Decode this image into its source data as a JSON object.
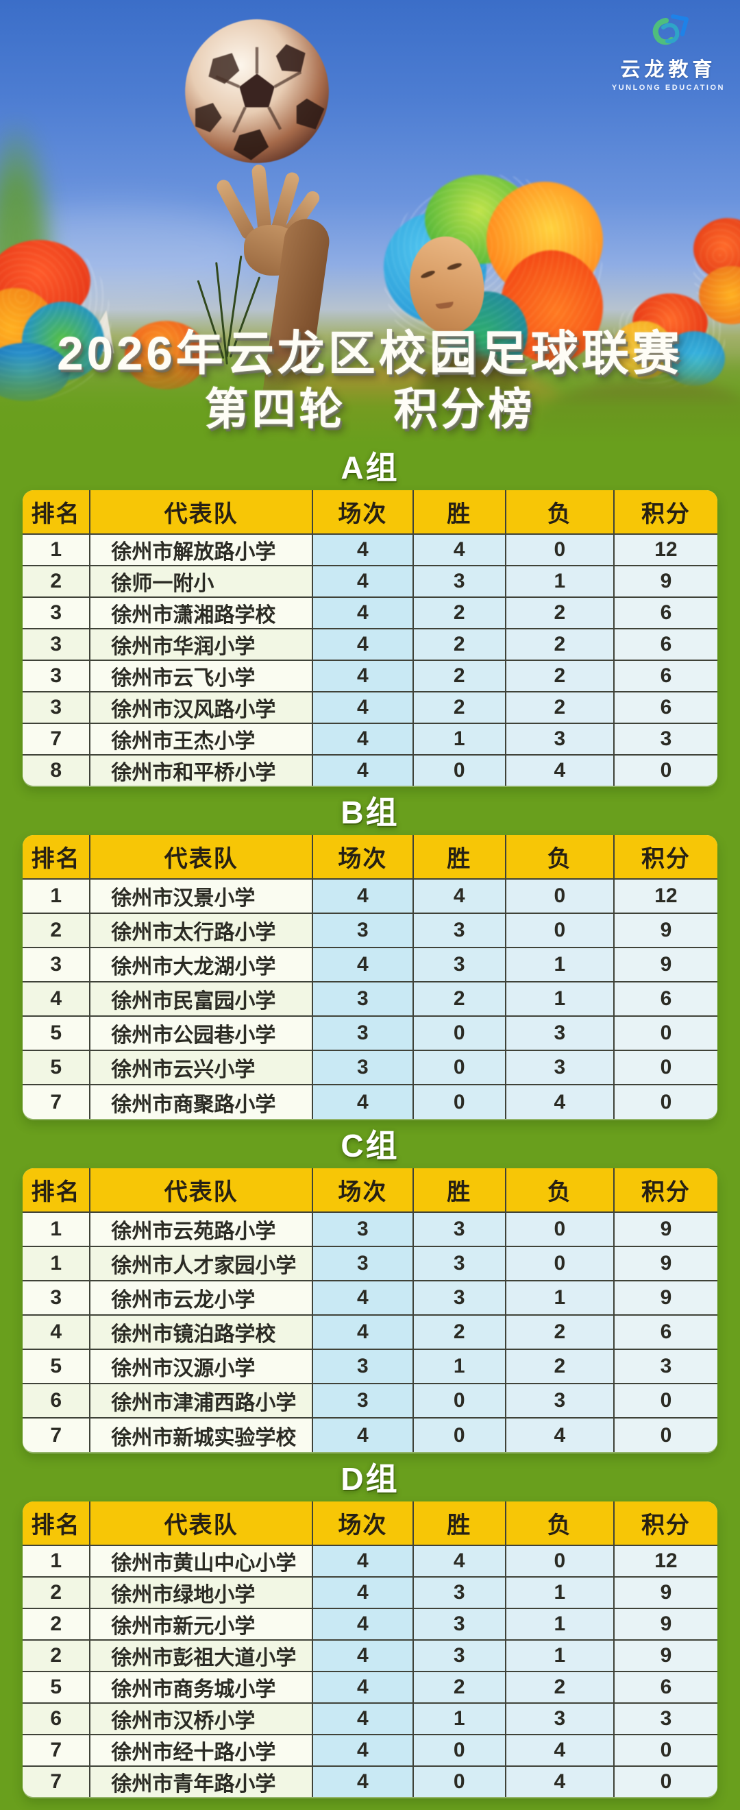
{
  "logo": {
    "name": "云龙教育",
    "tagline": "YUNLONG EDUCATION",
    "icon": "yunlong-education-logo",
    "icon_colors": {
      "green": "#4fbe7e",
      "blue": "#1e82e8"
    }
  },
  "hero": {
    "title_line1": "2026年云龙区校园足球联赛",
    "title_line2": "第四轮　积分榜"
  },
  "table_headers": [
    "排名",
    "代表队",
    "场次",
    "胜",
    "负",
    "积分"
  ],
  "groups": [
    {
      "label": "A组",
      "tall": false,
      "rows": [
        [
          1,
          "徐州市解放路小学",
          4,
          4,
          0,
          12
        ],
        [
          2,
          "徐师一附小",
          4,
          3,
          1,
          9
        ],
        [
          3,
          "徐州市潇湘路学校",
          4,
          2,
          2,
          6
        ],
        [
          3,
          "徐州市华润小学",
          4,
          2,
          2,
          6
        ],
        [
          3,
          "徐州市云飞小学",
          4,
          2,
          2,
          6
        ],
        [
          3,
          "徐州市汉风路小学",
          4,
          2,
          2,
          6
        ],
        [
          7,
          "徐州市王杰小学",
          4,
          1,
          3,
          3
        ],
        [
          8,
          "徐州市和平桥小学",
          4,
          0,
          4,
          0
        ]
      ]
    },
    {
      "label": "B组",
      "tall": true,
      "rows": [
        [
          1,
          "徐州市汉景小学",
          4,
          4,
          0,
          12
        ],
        [
          2,
          "徐州市太行路小学",
          3,
          3,
          0,
          9
        ],
        [
          3,
          "徐州市大龙湖小学",
          4,
          3,
          1,
          9
        ],
        [
          4,
          "徐州市民富园小学",
          3,
          2,
          1,
          6
        ],
        [
          5,
          "徐州市公园巷小学",
          3,
          0,
          3,
          0
        ],
        [
          5,
          "徐州市云兴小学",
          3,
          0,
          3,
          0
        ],
        [
          7,
          "徐州市商聚路小学",
          4,
          0,
          4,
          0
        ]
      ]
    },
    {
      "label": "C组",
      "tall": true,
      "rows": [
        [
          1,
          "徐州市云苑路小学",
          3,
          3,
          0,
          9
        ],
        [
          1,
          "徐州市人才家园小学",
          3,
          3,
          0,
          9
        ],
        [
          3,
          "徐州市云龙小学",
          4,
          3,
          1,
          9
        ],
        [
          4,
          "徐州市镜泊路学校",
          4,
          2,
          2,
          6
        ],
        [
          5,
          "徐州市汉源小学",
          3,
          1,
          2,
          3
        ],
        [
          6,
          "徐州市津浦西路小学",
          3,
          0,
          3,
          0
        ],
        [
          7,
          "徐州市新城实验学校",
          4,
          0,
          4,
          0
        ]
      ]
    },
    {
      "label": "D组",
      "tall": false,
      "rows": [
        [
          1,
          "徐州市黄山中心小学",
          4,
          4,
          0,
          12
        ],
        [
          2,
          "徐州市绿地小学",
          4,
          3,
          1,
          9
        ],
        [
          2,
          "徐州市新元小学",
          4,
          3,
          1,
          9
        ],
        [
          2,
          "徐州市彭祖大道小学",
          4,
          3,
          1,
          9
        ],
        [
          5,
          "徐州市商务城小学",
          4,
          2,
          2,
          6
        ],
        [
          6,
          "徐州市汉桥小学",
          4,
          1,
          3,
          3
        ],
        [
          7,
          "徐州市经十路小学",
          4,
          0,
          4,
          0
        ],
        [
          7,
          "徐州市青年路小学",
          4,
          0,
          4,
          0
        ]
      ]
    }
  ],
  "colors": {
    "background_green": "#699f1d",
    "header_yellow": "#f7c606",
    "cell_rank_team": "#f2f7e4",
    "cell_played": "#c9e9f4",
    "cell_wins": "#d6edf5",
    "cell_losses": "#deeff6",
    "cell_points": "#e8f3f6",
    "grid_line": "#3f4238",
    "title_text": "#fefdf6"
  }
}
